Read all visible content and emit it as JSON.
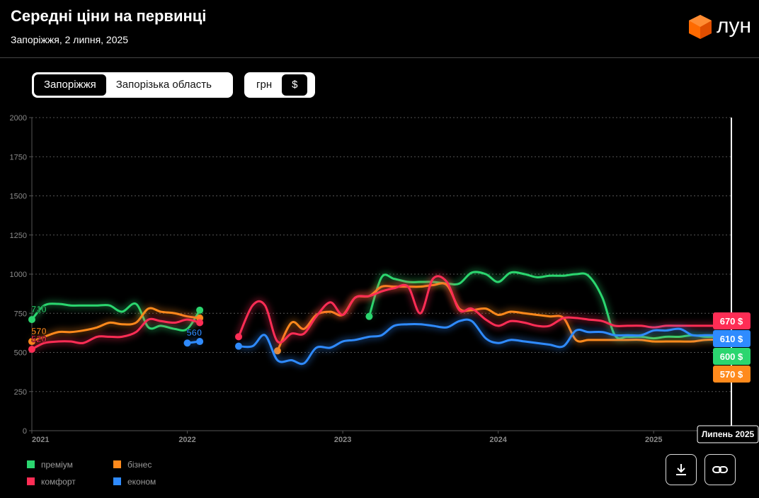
{
  "header": {
    "title": "Середні ціни на первинці",
    "subtitle": "Запоріжжя, 2 липня, 2025",
    "logo": "лун"
  },
  "controls": {
    "region": [
      "Запоріжжя",
      "Запорізька область"
    ],
    "currency": [
      "грн",
      "$"
    ]
  },
  "chart_data": {
    "type": "line",
    "x": [
      2021,
      2021.08,
      2021.17,
      2021.25,
      2021.33,
      2021.42,
      2021.5,
      2021.58,
      2021.67,
      2021.75,
      2021.83,
      2021.92,
      2022,
      2022.08,
      2022.17,
      2022.25,
      2022.33,
      2022.42,
      2022.5,
      2022.58,
      2022.67,
      2022.75,
      2022.83,
      2022.92,
      2023,
      2023.08,
      2023.17,
      2023.25,
      2023.33,
      2023.42,
      2023.5,
      2023.58,
      2023.67,
      2023.75,
      2023.83,
      2023.92,
      2024,
      2024.08,
      2024.17,
      2024.25,
      2024.33,
      2024.42,
      2024.5,
      2024.58,
      2024.67,
      2024.75,
      2024.83,
      2024.92,
      2025,
      2025.08,
      2025.17,
      2025.25,
      2025.33,
      2025.42,
      2025.5
    ],
    "xlim": [
      2021,
      2025.5
    ],
    "xticks": [
      2021,
      2022,
      2023,
      2024,
      2025
    ],
    "ylim": [
      0,
      2000
    ],
    "yticks": [
      0,
      250,
      500,
      750,
      1000,
      1250,
      1500,
      1750,
      2000
    ],
    "grid": true,
    "cursor_label": "Липень 2025",
    "series": [
      {
        "name": "преміум",
        "color": "#2bd66f",
        "values": [
          710,
          800,
          810,
          800,
          800,
          800,
          800,
          760,
          810,
          660,
          670,
          650,
          650,
          770,
          null,
          null,
          null,
          null,
          null,
          null,
          null,
          null,
          null,
          null,
          null,
          null,
          730,
          980,
          970,
          950,
          950,
          950,
          940,
          940,
          1010,
          1000,
          950,
          1010,
          1000,
          980,
          990,
          990,
          1000,
          990,
          850,
          610,
          600,
          600,
          590,
          600,
          600,
          610,
          600,
          600,
          600
        ],
        "value_labels": [
          "710",
          null,
          null,
          null,
          null,
          null,
          null,
          null,
          null,
          null,
          null,
          null,
          null,
          null,
          null,
          null,
          null,
          null,
          null,
          null,
          null,
          null,
          null,
          null,
          null,
          null,
          null,
          null,
          null,
          null,
          null,
          null,
          null,
          null,
          null,
          null,
          null,
          null,
          null,
          null,
          null,
          null,
          null,
          null,
          null,
          null,
          null,
          null,
          null,
          null,
          null,
          null,
          null,
          null,
          "600 $"
        ]
      },
      {
        "name": "бізнес",
        "color": "#ff8a1c",
        "values": [
          570,
          600,
          630,
          630,
          640,
          660,
          690,
          680,
          690,
          780,
          760,
          750,
          730,
          720,
          null,
          null,
          null,
          null,
          null,
          510,
          690,
          650,
          740,
          760,
          740,
          850,
          860,
          920,
          920,
          920,
          920,
          930,
          930,
          780,
          770,
          780,
          740,
          760,
          750,
          740,
          730,
          720,
          580,
          580,
          580,
          580,
          580,
          580,
          570,
          570,
          570,
          570,
          580,
          580,
          570
        ],
        "value_labels": [
          "570",
          null,
          null,
          null,
          null,
          null,
          null,
          null,
          null,
          null,
          null,
          null,
          null,
          null,
          null,
          null,
          null,
          null,
          null,
          null,
          null,
          null,
          null,
          null,
          null,
          null,
          null,
          null,
          null,
          null,
          null,
          null,
          null,
          null,
          null,
          null,
          null,
          null,
          null,
          null,
          null,
          null,
          null,
          null,
          null,
          null,
          null,
          null,
          null,
          null,
          null,
          null,
          null,
          null,
          "570 $"
        ]
      },
      {
        "name": "комфорт",
        "color": "#ff2d55",
        "values": [
          520,
          560,
          570,
          570,
          560,
          600,
          600,
          600,
          630,
          710,
          700,
          690,
          710,
          690,
          null,
          null,
          600,
          800,
          800,
          570,
          620,
          620,
          730,
          820,
          740,
          850,
          860,
          890,
          910,
          920,
          750,
          970,
          950,
          770,
          780,
          710,
          670,
          700,
          690,
          670,
          670,
          720,
          720,
          710,
          700,
          670,
          670,
          670,
          660,
          670,
          670,
          670,
          670,
          670,
          670
        ],
        "value_labels": [
          "520",
          null,
          null,
          null,
          null,
          null,
          null,
          null,
          null,
          null,
          null,
          null,
          null,
          null,
          null,
          null,
          null,
          null,
          null,
          null,
          null,
          null,
          null,
          null,
          null,
          null,
          null,
          null,
          null,
          null,
          null,
          null,
          null,
          null,
          null,
          null,
          null,
          null,
          null,
          null,
          null,
          null,
          null,
          null,
          null,
          null,
          null,
          null,
          null,
          null,
          null,
          null,
          null,
          null,
          "670 $"
        ]
      },
      {
        "name": "економ",
        "color": "#2f8bff",
        "values": [
          null,
          null,
          null,
          null,
          null,
          null,
          null,
          null,
          null,
          null,
          null,
          null,
          560,
          570,
          null,
          null,
          540,
          540,
          610,
          450,
          450,
          430,
          530,
          530,
          570,
          580,
          600,
          610,
          670,
          680,
          680,
          670,
          660,
          700,
          700,
          590,
          560,
          580,
          570,
          560,
          550,
          540,
          640,
          630,
          630,
          610,
          610,
          610,
          640,
          640,
          650,
          610,
          610,
          610,
          610
        ],
        "value_labels": [
          null,
          null,
          null,
          null,
          null,
          null,
          null,
          null,
          null,
          null,
          null,
          null,
          "560",
          null,
          null,
          null,
          null,
          null,
          null,
          null,
          null,
          null,
          null,
          null,
          null,
          null,
          null,
          null,
          null,
          null,
          null,
          null,
          null,
          null,
          null,
          null,
          null,
          null,
          null,
          null,
          null,
          null,
          null,
          null,
          null,
          null,
          null,
          null,
          null,
          null,
          null,
          null,
          null,
          null,
          "610 $"
        ]
      }
    ]
  }
}
